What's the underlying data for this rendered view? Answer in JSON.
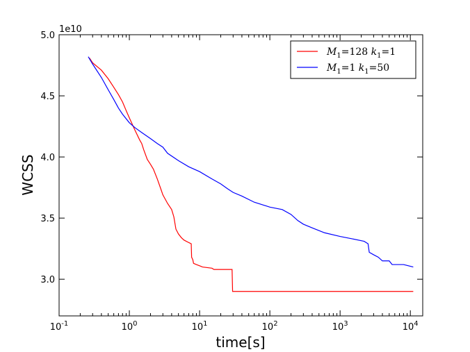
{
  "chart_data": {
    "type": "line",
    "xlabel": "time[s]",
    "ylabel": "WCSS",
    "x_scale": "log",
    "xlim": [
      0.1,
      15000
    ],
    "ylim": [
      27000000000.0,
      50000000000.0
    ],
    "y_offset_label": "1e10",
    "x_ticks": [
      {
        "value": 0.1,
        "base": "10",
        "exp": "-1"
      },
      {
        "value": 1,
        "base": "10",
        "exp": "0"
      },
      {
        "value": 10,
        "base": "10",
        "exp": "1"
      },
      {
        "value": 100,
        "base": "10",
        "exp": "2"
      },
      {
        "value": 1000,
        "base": "10",
        "exp": "3"
      },
      {
        "value": 10000,
        "base": "10",
        "exp": "4"
      }
    ],
    "y_ticks": [
      {
        "value": 30000000000.0,
        "label": "3.0"
      },
      {
        "value": 35000000000.0,
        "label": "3.5"
      },
      {
        "value": 40000000000.0,
        "label": "4.0"
      },
      {
        "value": 45000000000.0,
        "label": "4.5"
      },
      {
        "value": 50000000000.0,
        "label": "5.0"
      }
    ],
    "grid": false,
    "legend_position": "top-right",
    "series": [
      {
        "name": "M1=128 k1=1",
        "legend": {
          "a": "M",
          "a_sub": "1",
          "a_val": "=128",
          "b": "k",
          "b_sub": "1",
          "b_val": "=1"
        },
        "color": "#ff0000",
        "points": [
          [
            0.27,
            48100000000.0
          ],
          [
            0.3,
            47700000000.0
          ],
          [
            0.4,
            47100000000.0
          ],
          [
            0.5,
            46400000000.0
          ],
          [
            0.6,
            45700000000.0
          ],
          [
            0.7,
            45100000000.0
          ],
          [
            0.8,
            44500000000.0
          ],
          [
            0.9,
            43800000000.0
          ],
          [
            1.0,
            43200000000.0
          ],
          [
            1.2,
            42200000000.0
          ],
          [
            1.4,
            41400000000.0
          ],
          [
            1.5,
            41100000000.0
          ],
          [
            1.6,
            40600000000.0
          ],
          [
            1.8,
            39800000000.0
          ],
          [
            2.0,
            39400000000.0
          ],
          [
            2.2,
            39000000000.0
          ],
          [
            2.5,
            38200000000.0
          ],
          [
            2.8,
            37400000000.0
          ],
          [
            3.0,
            36900000000.0
          ],
          [
            3.5,
            36200000000.0
          ],
          [
            4.0,
            35700000000.0
          ],
          [
            4.3,
            35100000000.0
          ],
          [
            4.6,
            34100000000.0
          ],
          [
            5.0,
            33700000000.0
          ],
          [
            5.5,
            33400000000.0
          ],
          [
            6.0,
            33200000000.0
          ],
          [
            7.0,
            33000000000.0
          ],
          [
            7.6,
            32900000000.0
          ],
          [
            7.7,
            31800000000.0
          ],
          [
            8.0,
            31600000000.0
          ],
          [
            8.2,
            31300000000.0
          ],
          [
            9.0,
            31200000000.0
          ],
          [
            10.0,
            31100000000.0
          ],
          [
            11.0,
            31000000000.0
          ],
          [
            15.0,
            30900000000.0
          ],
          [
            16.0,
            30800000000.0
          ],
          [
            29.0,
            30800000000.0
          ],
          [
            29.5,
            29000000000.0
          ],
          [
            11000,
            29000000000.0
          ]
        ]
      },
      {
        "name": "M1=1 k1=50",
        "legend": {
          "a": "M",
          "a_sub": "1",
          "a_val": "=1",
          "b": "k",
          "b_sub": "1",
          "b_val": "=50"
        },
        "color": "#0000ff",
        "points": [
          [
            0.26,
            48200000000.0
          ],
          [
            0.3,
            47600000000.0
          ],
          [
            0.4,
            46500000000.0
          ],
          [
            0.5,
            45500000000.0
          ],
          [
            0.6,
            44700000000.0
          ],
          [
            0.7,
            44000000000.0
          ],
          [
            0.8,
            43500000000.0
          ],
          [
            1.0,
            42800000000.0
          ],
          [
            1.2,
            42400000000.0
          ],
          [
            1.5,
            42000000000.0
          ],
          [
            2.0,
            41500000000.0
          ],
          [
            2.5,
            41100000000.0
          ],
          [
            3.0,
            40800000000.0
          ],
          [
            3.5,
            40300000000.0
          ],
          [
            5.0,
            39700000000.0
          ],
          [
            7.0,
            39200000000.0
          ],
          [
            10.0,
            38800000000.0
          ],
          [
            15.0,
            38200000000.0
          ],
          [
            20.0,
            37800000000.0
          ],
          [
            25.0,
            37400000000.0
          ],
          [
            30.0,
            37100000000.0
          ],
          [
            40.0,
            36800000000.0
          ],
          [
            60.0,
            36300000000.0
          ],
          [
            100.0,
            35900000000.0
          ],
          [
            150.0,
            35700000000.0
          ],
          [
            200.0,
            35300000000.0
          ],
          [
            250.0,
            34800000000.0
          ],
          [
            300.0,
            34500000000.0
          ],
          [
            400.0,
            34200000000.0
          ],
          [
            600.0,
            33800000000.0
          ],
          [
            1000.0,
            33500000000.0
          ],
          [
            1500.0,
            33300000000.0
          ],
          [
            2200.0,
            33100000000.0
          ],
          [
            2500.0,
            32900000000.0
          ],
          [
            2600.0,
            32200000000.0
          ],
          [
            3000.0,
            32000000000.0
          ],
          [
            3500.0,
            31800000000.0
          ],
          [
            4000.0,
            31500000000.0
          ],
          [
            5000.0,
            31500000000.0
          ],
          [
            5500.0,
            31200000000.0
          ],
          [
            8000.0,
            31200000000.0
          ],
          [
            11000,
            31000000000.0
          ]
        ]
      }
    ]
  }
}
